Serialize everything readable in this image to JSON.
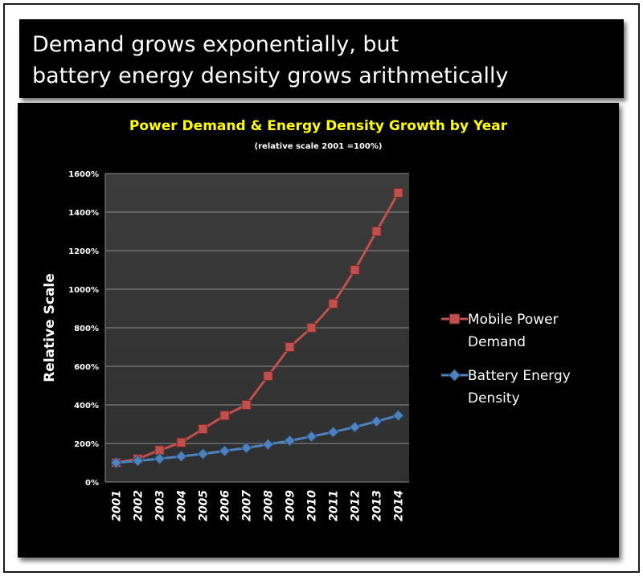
{
  "header": {
    "line1": "Demand grows exponentially, but",
    "line2": "battery energy density grows arithmetically"
  },
  "colors": {
    "title": "#ffff00",
    "plot_area": "#3a3a3a",
    "demand_series": "#c0504d",
    "density_series": "#4f81bd"
  },
  "chart_data": {
    "type": "line",
    "title": "Power Demand & Energy Density Growth  by Year",
    "subtitle": "(relative scale 2001 =100%)",
    "xlabel": "",
    "ylabel": "Relative Scale",
    "ylim": [
      0,
      1600
    ],
    "y_tick_labels": [
      "0%",
      "200%",
      "400%",
      "600%",
      "800%",
      "1000%",
      "1200%",
      "1400%",
      "1600%"
    ],
    "categories": [
      "2001",
      "2002",
      "2003",
      "2004",
      "2005",
      "2006",
      "2007",
      "2008",
      "2009",
      "2010",
      "2011",
      "2012",
      "2013",
      "2014"
    ],
    "grid": "horizontal",
    "legend_position": "right",
    "series": [
      {
        "name": "Mobile Power Demand",
        "marker": "square",
        "values": [
          100,
          120,
          165,
          205,
          275,
          345,
          400,
          550,
          700,
          800,
          925,
          1100,
          1300,
          1500
        ]
      },
      {
        "name": "Battery Energy Density",
        "marker": "diamond",
        "values": [
          100,
          110,
          121,
          133,
          146,
          161,
          177,
          195,
          214,
          236,
          259,
          285,
          314,
          345
        ]
      }
    ]
  }
}
